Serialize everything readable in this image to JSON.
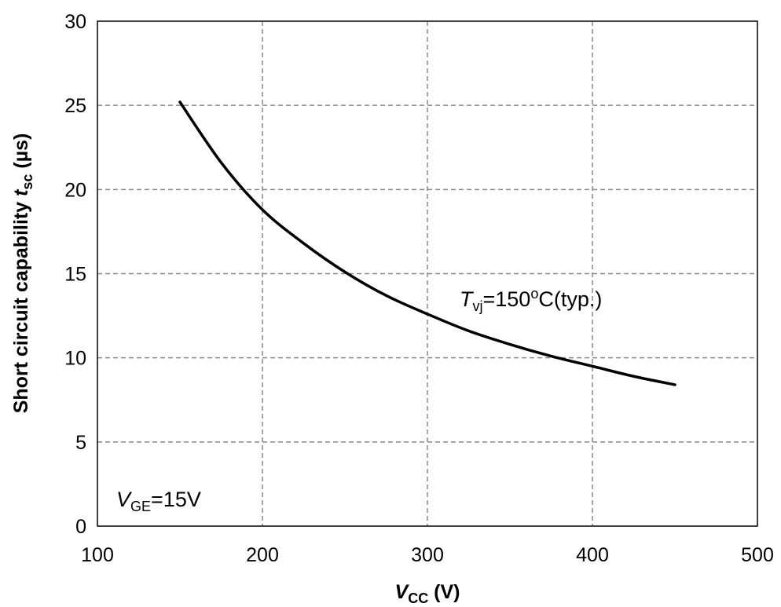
{
  "chart_data": {
    "type": "line",
    "x_axis": {
      "label": {
        "symbol": "V",
        "subscript": "CC",
        "unit": " (V)"
      },
      "range": [
        100,
        500
      ],
      "ticks": [
        100,
        200,
        300,
        400,
        500
      ],
      "tick_labels": [
        "100",
        "200",
        "300",
        "400",
        "500"
      ]
    },
    "y_axis": {
      "label": {
        "prefix": "Short circuit capability ",
        "symbol": "t",
        "subscript": "sc",
        "unit": " (µs)"
      },
      "range": [
        0,
        30
      ],
      "ticks": [
        0,
        5,
        10,
        15,
        20,
        25,
        30
      ],
      "tick_labels": [
        "0",
        "5",
        "10",
        "15",
        "20",
        "25",
        "30"
      ]
    },
    "grid": {
      "style": "dashed",
      "color": "#888888"
    },
    "series": [
      {
        "color": "#000000",
        "x": [
          150,
          175,
          200,
          225,
          250,
          275,
          300,
          325,
          350,
          375,
          400,
          425,
          450
        ],
        "y": [
          25.2,
          21.6,
          18.8,
          16.8,
          15.1,
          13.7,
          12.6,
          11.6,
          10.8,
          10.1,
          9.5,
          8.9,
          8.4
        ]
      }
    ],
    "annotations": [
      {
        "symbol": "T",
        "subscript": "vj",
        "text": "=150",
        "superscript": "o",
        "suffix": "C(typ.)"
      },
      {
        "symbol": "V",
        "subscript": "GE",
        "text": "=15V"
      }
    ]
  }
}
